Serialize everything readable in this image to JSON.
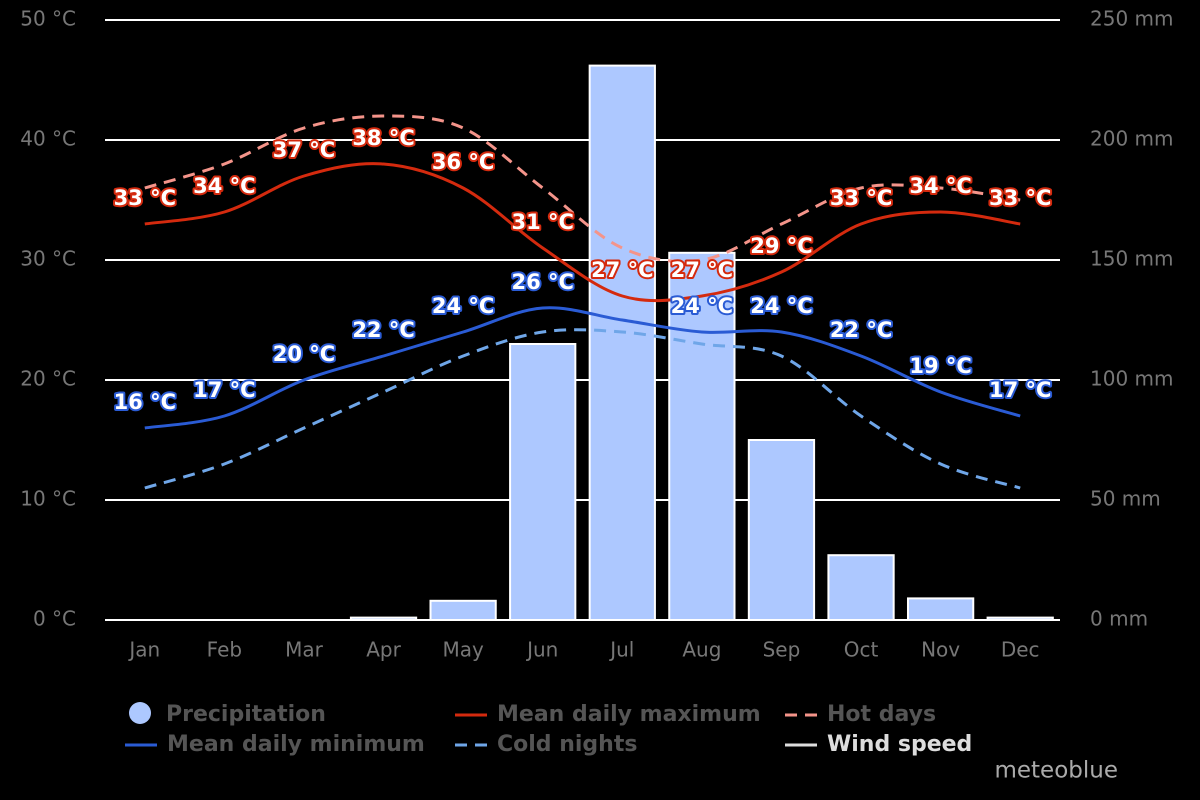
{
  "chart_data": {
    "type": "climate",
    "categories": [
      "Jan",
      "Feb",
      "Mar",
      "Apr",
      "May",
      "Jun",
      "Jul",
      "Aug",
      "Sep",
      "Oct",
      "Nov",
      "Dec"
    ],
    "ylim": [
      0,
      50
    ],
    "yticks": [
      {
        "value": 0,
        "label": "0 °C"
      },
      {
        "value": 10,
        "label": "10 °C"
      },
      {
        "value": 20,
        "label": "20 °C"
      },
      {
        "value": 30,
        "label": "30 °C"
      },
      {
        "value": 40,
        "label": "40 °C"
      },
      {
        "value": 50,
        "label": "50 °C"
      }
    ],
    "y2lim": [
      0,
      250
    ],
    "y2ticks": [
      {
        "value": 0,
        "label": "0 mm"
      },
      {
        "value": 50,
        "label": "50 mm"
      },
      {
        "value": 100,
        "label": "100 mm"
      },
      {
        "value": 150,
        "label": "150 mm"
      },
      {
        "value": 200,
        "label": "200 mm"
      },
      {
        "value": 250,
        "label": "250 mm"
      }
    ],
    "grid": true,
    "series": [
      {
        "name": "Precipitation",
        "type": "bar",
        "axis": "y2",
        "color": "#adc8ff",
        "values": [
          0,
          0,
          0,
          1,
          8,
          115,
          231,
          153,
          75,
          27,
          9,
          1
        ]
      },
      {
        "name": "Mean daily maximum",
        "type": "line",
        "color": "#d42a0e",
        "values": [
          33,
          34,
          37,
          38,
          36,
          31,
          27,
          27,
          29,
          33,
          34,
          33
        ],
        "value_labels": [
          "33 °C",
          "34 °C",
          "37 °C",
          "38 °C",
          "36 °C",
          "31 °C",
          "27 °C",
          "27 °C",
          "29 °C",
          "33 °C",
          "34 °C",
          "33 °C"
        ]
      },
      {
        "name": "Hot days",
        "type": "line",
        "dashed": true,
        "color": "#f4948a",
        "values": [
          36,
          38,
          41,
          42,
          41,
          36,
          31,
          30,
          33,
          36,
          36,
          35
        ]
      },
      {
        "name": "Mean daily minimum",
        "type": "line",
        "color": "#2a5bd4",
        "values": [
          16,
          17,
          20,
          22,
          24,
          26,
          25,
          24,
          24,
          22,
          19,
          17
        ],
        "value_labels": [
          "16 °C",
          "17 °C",
          "20 °C",
          "22 °C",
          "24 °C",
          "26 °C",
          null,
          "24 °C",
          "24 °C",
          "22 °C",
          "19 °C",
          "17 °C"
        ]
      },
      {
        "name": "Cold nights",
        "type": "line",
        "dashed": true,
        "color": "#6fa6e8",
        "values": [
          11,
          13,
          16,
          19,
          22,
          24,
          24,
          23,
          22,
          17,
          13,
          11
        ]
      },
      {
        "name": "Wind speed",
        "type": "line",
        "color": "#dddddd"
      }
    ],
    "credit": "meteoblue"
  }
}
